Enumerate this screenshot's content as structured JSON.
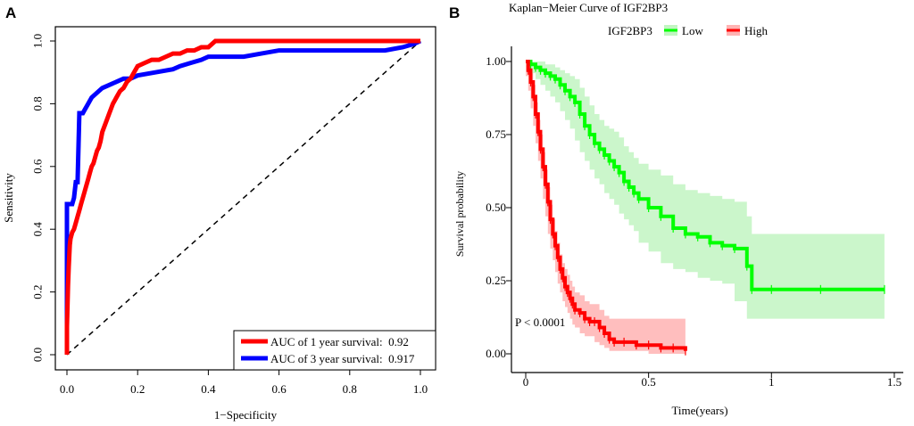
{
  "panels": {
    "a": {
      "letter": "A"
    },
    "b": {
      "letter": "B"
    }
  },
  "colors": {
    "red": "#ff0000",
    "blue": "#0000ff",
    "green": "#00ff00",
    "red_band": "#ffb3b3",
    "green_band": "#c2f5c2"
  },
  "chart_data": [
    {
      "type": "line",
      "title": "",
      "xlabel": "1−Specificity",
      "ylabel": "Sensitivity",
      "xlim": [
        0,
        1
      ],
      "ylim": [
        0,
        1
      ],
      "xticks": [
        "0.0",
        "0.2",
        "0.4",
        "0.6",
        "0.8",
        "1.0"
      ],
      "yticks": [
        "0.0",
        "0.2",
        "0.4",
        "0.6",
        "0.8",
        "1.0"
      ],
      "legend": [
        "AUC of 1 year survival:  0.92",
        "AUC of 3 year survival:  0.917"
      ],
      "legend_position": "bottom-right",
      "series": [
        {
          "name": "AUC of 1 year survival: 0.92",
          "color": "red",
          "x": [
            0,
            0,
            0.003,
            0.005,
            0.008,
            0.01,
            0.015,
            0.02,
            0.025,
            0.03,
            0.035,
            0.04,
            0.045,
            0.05,
            0.055,
            0.06,
            0.065,
            0.07,
            0.075,
            0.08,
            0.085,
            0.09,
            0.095,
            0.1,
            0.11,
            0.12,
            0.13,
            0.14,
            0.15,
            0.16,
            0.17,
            0.18,
            0.19,
            0.2,
            0.22,
            0.24,
            0.26,
            0.28,
            0.3,
            0.32,
            0.34,
            0.36,
            0.38,
            0.4,
            0.42,
            0.45,
            0.5,
            0.6,
            0.7,
            0.8,
            0.9,
            0.95,
            1.0
          ],
          "y": [
            0,
            0.09,
            0.22,
            0.28,
            0.35,
            0.37,
            0.39,
            0.4,
            0.42,
            0.44,
            0.46,
            0.48,
            0.5,
            0.52,
            0.54,
            0.56,
            0.58,
            0.6,
            0.61,
            0.63,
            0.65,
            0.66,
            0.68,
            0.71,
            0.74,
            0.77,
            0.8,
            0.82,
            0.84,
            0.85,
            0.87,
            0.88,
            0.9,
            0.92,
            0.93,
            0.94,
            0.94,
            0.95,
            0.96,
            0.96,
            0.97,
            0.97,
            0.98,
            0.98,
            1.0,
            1.0,
            1.0,
            1.0,
            1.0,
            1.0,
            1.0,
            1.0,
            1.0
          ]
        },
        {
          "name": "AUC of 3 year survival: 0.917",
          "color": "blue",
          "x": [
            0,
            0,
            0.005,
            0.01,
            0.015,
            0.02,
            0.025,
            0.03,
            0.035,
            0.04,
            0.045,
            0.05,
            0.055,
            0.06,
            0.07,
            0.08,
            0.09,
            0.1,
            0.12,
            0.14,
            0.16,
            0.18,
            0.2,
            0.25,
            0.3,
            0.32,
            0.35,
            0.38,
            0.4,
            0.45,
            0.5,
            0.55,
            0.6,
            0.7,
            0.8,
            0.9,
            0.95,
            0.98,
            1.0
          ],
          "y": [
            0,
            0.48,
            0.48,
            0.48,
            0.48,
            0.5,
            0.55,
            0.55,
            0.77,
            0.77,
            0.77,
            0.78,
            0.79,
            0.8,
            0.82,
            0.83,
            0.84,
            0.85,
            0.86,
            0.87,
            0.88,
            0.88,
            0.89,
            0.9,
            0.91,
            0.92,
            0.93,
            0.94,
            0.95,
            0.95,
            0.95,
            0.96,
            0.97,
            0.97,
            0.97,
            0.97,
            0.98,
            0.99,
            1.0
          ]
        },
        {
          "name": "reference",
          "color": "#000000",
          "style": "dashed",
          "x": [
            0,
            1
          ],
          "y": [
            0,
            1
          ]
        }
      ]
    },
    {
      "type": "line",
      "title": "Kaplan−Meier Curve of IGF2BP3",
      "xlabel": "Time(years)",
      "ylabel": "Survival probability",
      "xlim": [
        0,
        1.5
      ],
      "ylim": [
        0,
        1
      ],
      "xticks": [
        "0",
        "0.5",
        "1",
        "1.5"
      ],
      "xtick_values": [
        0,
        0.5,
        1,
        1.5
      ],
      "yticks": [
        "0.00",
        "0.25",
        "0.50",
        "0.75",
        "1.00"
      ],
      "ytick_values": [
        0,
        0.25,
        0.5,
        0.75,
        1.0
      ],
      "legend_title": "IGF2BP3",
      "legend": [
        "Low",
        "High"
      ],
      "legend_position": "top",
      "annotation": "P < 0.0001",
      "series": [
        {
          "name": "Low",
          "color": "green",
          "x": [
            0,
            0.02,
            0.04,
            0.06,
            0.08,
            0.1,
            0.12,
            0.14,
            0.16,
            0.18,
            0.2,
            0.22,
            0.24,
            0.26,
            0.28,
            0.3,
            0.32,
            0.34,
            0.36,
            0.38,
            0.4,
            0.42,
            0.44,
            0.46,
            0.5,
            0.55,
            0.6,
            0.65,
            0.7,
            0.75,
            0.8,
            0.85,
            0.9,
            0.92,
            1.0,
            1.2,
            1.46
          ],
          "y": [
            1.0,
            0.99,
            0.98,
            0.97,
            0.96,
            0.95,
            0.94,
            0.92,
            0.9,
            0.88,
            0.86,
            0.82,
            0.78,
            0.75,
            0.72,
            0.7,
            0.68,
            0.66,
            0.64,
            0.62,
            0.59,
            0.57,
            0.55,
            0.53,
            0.5,
            0.47,
            0.43,
            0.41,
            0.4,
            0.38,
            0.37,
            0.36,
            0.3,
            0.22,
            0.22,
            0.22,
            0.22
          ],
          "lower": [
            1.0,
            0.98,
            0.96,
            0.94,
            0.92,
            0.9,
            0.88,
            0.86,
            0.83,
            0.8,
            0.77,
            0.73,
            0.69,
            0.66,
            0.63,
            0.6,
            0.58,
            0.55,
            0.53,
            0.51,
            0.48,
            0.46,
            0.44,
            0.42,
            0.38,
            0.35,
            0.31,
            0.29,
            0.28,
            0.26,
            0.25,
            0.24,
            0.18,
            0.12,
            0.12,
            0.12,
            0.12
          ],
          "upper": [
            1.0,
            1.0,
            1.0,
            1.0,
            0.99,
            0.99,
            0.98,
            0.97,
            0.96,
            0.95,
            0.94,
            0.91,
            0.88,
            0.85,
            0.82,
            0.8,
            0.78,
            0.77,
            0.76,
            0.74,
            0.71,
            0.69,
            0.67,
            0.65,
            0.63,
            0.61,
            0.58,
            0.56,
            0.55,
            0.54,
            0.53,
            0.52,
            0.47,
            0.41,
            0.41,
            0.41,
            0.41
          ]
        },
        {
          "name": "High",
          "color": "red",
          "x": [
            0,
            0.01,
            0.02,
            0.03,
            0.04,
            0.05,
            0.06,
            0.07,
            0.08,
            0.09,
            0.1,
            0.11,
            0.12,
            0.13,
            0.14,
            0.15,
            0.16,
            0.17,
            0.18,
            0.19,
            0.2,
            0.22,
            0.24,
            0.26,
            0.28,
            0.3,
            0.32,
            0.34,
            0.36,
            0.4,
            0.45,
            0.5,
            0.55,
            0.6,
            0.65
          ],
          "y": [
            1.0,
            0.97,
            0.93,
            0.88,
            0.82,
            0.76,
            0.7,
            0.64,
            0.58,
            0.52,
            0.46,
            0.41,
            0.37,
            0.33,
            0.29,
            0.26,
            0.23,
            0.21,
            0.19,
            0.17,
            0.15,
            0.14,
            0.12,
            0.11,
            0.11,
            0.09,
            0.07,
            0.05,
            0.04,
            0.04,
            0.03,
            0.03,
            0.02,
            0.02,
            0.01
          ],
          "lower": [
            1.0,
            0.95,
            0.9,
            0.84,
            0.78,
            0.72,
            0.66,
            0.6,
            0.53,
            0.47,
            0.41,
            0.36,
            0.32,
            0.28,
            0.24,
            0.21,
            0.18,
            0.16,
            0.14,
            0.12,
            0.1,
            0.09,
            0.07,
            0.06,
            0.06,
            0.04,
            0.03,
            0.02,
            0.01,
            0.01,
            0.01,
            0.01,
            0.0,
            0.0,
            0.0
          ],
          "upper": [
            1.0,
            0.99,
            0.96,
            0.92,
            0.86,
            0.8,
            0.75,
            0.69,
            0.63,
            0.57,
            0.51,
            0.46,
            0.42,
            0.38,
            0.34,
            0.31,
            0.29,
            0.27,
            0.25,
            0.23,
            0.21,
            0.2,
            0.18,
            0.17,
            0.17,
            0.15,
            0.13,
            0.12,
            0.12,
            0.12,
            0.12,
            0.12,
            0.12,
            0.12,
            0.12
          ]
        }
      ]
    }
  ]
}
